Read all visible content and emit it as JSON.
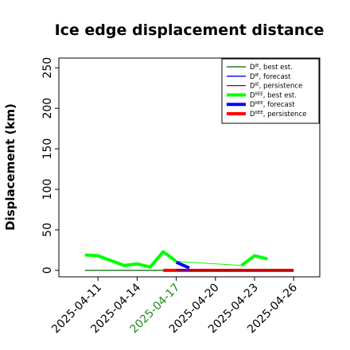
{
  "chart_data": {
    "type": "line",
    "title": "Ice edge displacement distance",
    "xlabel": "",
    "ylabel": "Displacement (km)",
    "xlim": [
      "2025-04-08",
      "2025-04-28"
    ],
    "ylim": [
      -8,
      262
    ],
    "yticks": [
      0,
      50,
      100,
      150,
      200,
      250
    ],
    "xticks": [
      {
        "date": "2025-04-11",
        "label": "2025-04-11",
        "color": "#000000"
      },
      {
        "date": "2025-04-14",
        "label": "2025-04-14",
        "color": "#000000"
      },
      {
        "date": "2025-04-17",
        "label": "2025-04-17",
        "color": "#228B22"
      },
      {
        "date": "2025-04-20",
        "label": "2025-04-20",
        "color": "#000000"
      },
      {
        "date": "2025-04-23",
        "label": "2025-04-23",
        "color": "#000000"
      },
      {
        "date": "2025-04-26",
        "label": "2025-04-26",
        "color": "#000000"
      }
    ],
    "grid": false,
    "legend_position": "top-right",
    "series": [
      {
        "name": "D^IE, best est.",
        "base": "D",
        "sup": "IE",
        "suffix": ", best est.",
        "color": "#006400",
        "width": 1.3,
        "x": [
          "2025-04-10",
          "2025-04-16"
        ],
        "y": [
          0,
          0
        ]
      },
      {
        "name": "D^IE, forecast",
        "base": "D",
        "sup": "IE",
        "suffix": ", forecast",
        "color": "#0000ff",
        "width": 1.3,
        "x": [
          "2025-04-17",
          "2025-04-18"
        ],
        "y": [
          1,
          0
        ]
      },
      {
        "name": "D^IE, persistence",
        "base": "D",
        "sup": "IE",
        "suffix": ", persistence",
        "color": "#a00000",
        "width": 1.3,
        "x": [
          "2025-04-18",
          "2025-04-26"
        ],
        "y": [
          0,
          0
        ]
      },
      {
        "name": "D^IIEE, best est.",
        "base": "D",
        "sup": "IIEE",
        "suffix": ", best est.",
        "color": "#00ff00",
        "width": 4,
        "x": [
          "2025-04-10",
          "2025-04-11",
          "2025-04-12",
          "2025-04-13",
          "2025-04-14",
          "2025-04-15",
          "2025-04-16",
          "2025-04-17",
          "2025-04-22",
          "2025-04-23",
          "2025-04-24"
        ],
        "y": [
          19,
          18,
          12,
          6,
          8,
          4,
          23,
          11,
          6,
          18,
          14
        ],
        "gap_after": [
          7
        ],
        "thin_connector": {
          "x": [
            "2025-04-17",
            "2025-04-22"
          ],
          "y": [
            11,
            6
          ]
        }
      },
      {
        "name": "D^IIEE, forecast",
        "base": "D",
        "sup": "IIEE",
        "suffix": ", forecast",
        "color": "#0000ff",
        "width": 4,
        "x": [
          "2025-04-17",
          "2025-04-18"
        ],
        "y": [
          10,
          3
        ]
      },
      {
        "name": "D^IIEE, persistence",
        "base": "D",
        "sup": "IIEE",
        "suffix": ", persistence",
        "color": "#ff0000",
        "width": 4,
        "x": [
          "2025-04-16",
          "2025-04-26"
        ],
        "y": [
          0,
          0
        ]
      }
    ]
  }
}
